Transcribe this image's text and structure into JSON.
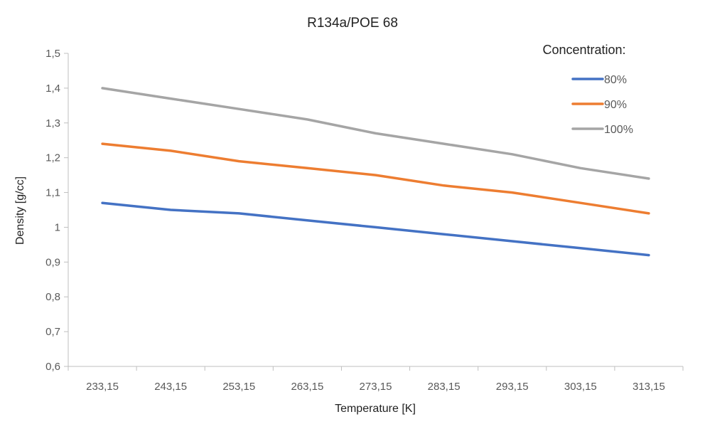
{
  "chart_data": {
    "type": "line",
    "title": "R134a/POE 68",
    "xlabel": "Temperature [K]",
    "ylabel": "Density  [g/cc]",
    "categories": [
      "233,15",
      "243,15",
      "253,15",
      "263,15",
      "273,15",
      "283,15",
      "293,15",
      "303,15",
      "313,15"
    ],
    "ylim": [
      0.6,
      1.5
    ],
    "yticks": [
      0.6,
      0.7,
      0.8,
      0.9,
      1.0,
      1.1,
      1.2,
      1.3,
      1.4,
      1.5
    ],
    "ytick_labels": [
      "0,6",
      "0,7",
      "0,8",
      "0,9",
      "1",
      "1,1",
      "1,2",
      "1,3",
      "1,4",
      "1,5"
    ],
    "grid": false,
    "legend": {
      "title": "Concentration:",
      "placement": "top-right"
    },
    "series": [
      {
        "name": "80%",
        "color": "#4472c4",
        "values": [
          1.07,
          1.05,
          1.04,
          1.02,
          1.0,
          0.98,
          0.96,
          0.94,
          0.92
        ]
      },
      {
        "name": "90%",
        "color": "#ed7d31",
        "values": [
          1.24,
          1.22,
          1.19,
          1.17,
          1.15,
          1.12,
          1.1,
          1.07,
          1.04
        ]
      },
      {
        "name": "100%",
        "color": "#a5a5a5",
        "values": [
          1.4,
          1.37,
          1.34,
          1.31,
          1.27,
          1.24,
          1.21,
          1.17,
          1.14
        ]
      }
    ]
  }
}
